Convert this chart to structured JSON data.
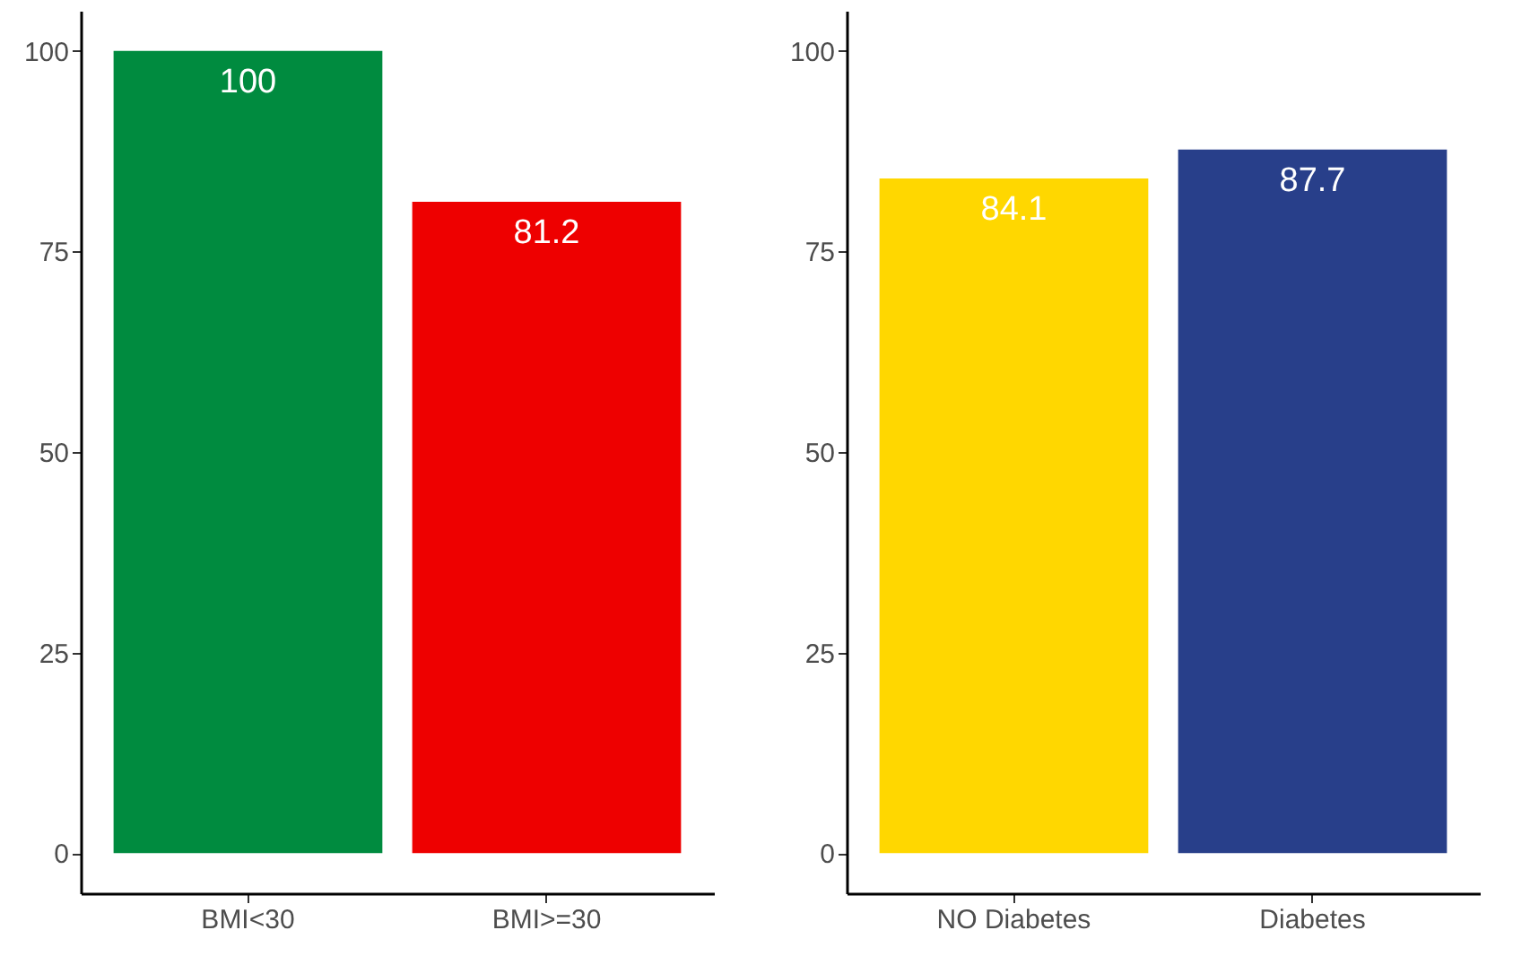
{
  "chart_data": [
    {
      "type": "bar",
      "categories": [
        "BMI<30",
        "BMI>=30"
      ],
      "values": [
        100,
        81.2
      ],
      "colors": [
        "#008b3f",
        "#ee0000"
      ],
      "ylim": [
        -5,
        105
      ],
      "yticks": [
        0,
        25,
        50,
        75,
        100
      ],
      "data_labels": true,
      "grid": false
    },
    {
      "type": "bar",
      "categories": [
        "NO Diabetes",
        "Diabetes"
      ],
      "values": [
        84.1,
        87.7
      ],
      "colors": [
        "#ffd700",
        "#283f8a"
      ],
      "ylim": [
        -5,
        105
      ],
      "yticks": [
        0,
        25,
        50,
        75,
        100
      ],
      "data_labels": true,
      "grid": false
    }
  ]
}
